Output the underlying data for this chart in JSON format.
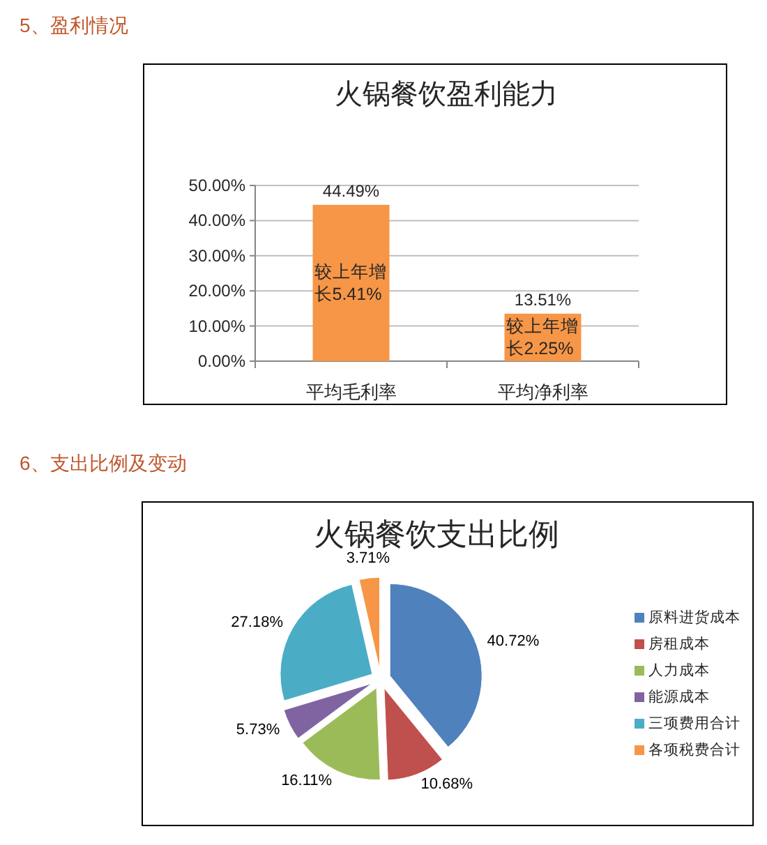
{
  "chart_data": [
    {
      "type": "bar",
      "title": "火锅餐饮盈利能力",
      "categories": [
        "平均毛利率",
        "平均净利率"
      ],
      "values": [
        44.49,
        13.51
      ],
      "color": "#f79646",
      "ylim": [
        0,
        50
      ],
      "yticks": [
        {
          "value": 0,
          "label": "0.00%"
        },
        {
          "value": 10,
          "label": "10.00%"
        },
        {
          "value": 20,
          "label": "20.00%"
        },
        {
          "value": 30,
          "label": "30.00%"
        },
        {
          "value": 40,
          "label": "40.00%"
        },
        {
          "value": 50,
          "label": "50.00%"
        }
      ],
      "grid": "y",
      "value_labels": [
        "44.49%",
        "13.51%"
      ],
      "annotations": [
        "5、盈利情况",
        "较上年增长5.41%",
        "较上年增长2.25%"
      ]
    },
    {
      "type": "pie",
      "title": "火锅餐饮支出比例",
      "categories": [
        "原料进货成本",
        "房租成本",
        "人力成本",
        "能源成本",
        "三项费用合计",
        "各项税费合计"
      ],
      "values": [
        40.72,
        10.68,
        16.11,
        5.73,
        27.18,
        3.71
      ],
      "colors": [
        "#4f81bd",
        "#c0504d",
        "#9bbb59",
        "#8064a2",
        "#4bacc6",
        "#f79646"
      ],
      "value_labels": [
        "40.72%",
        "10.68%",
        "16.11%",
        "5.73%",
        "27.18%",
        "3.71%"
      ],
      "legend": "right",
      "annotations": [
        "6、支出比例及变动"
      ]
    }
  ]
}
